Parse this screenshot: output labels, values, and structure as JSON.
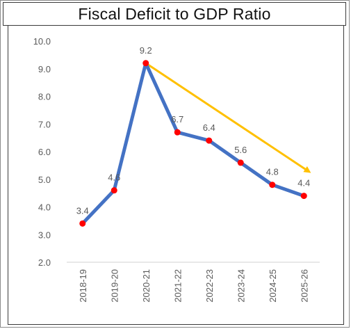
{
  "chart_data": {
    "type": "line",
    "title": "Fiscal Deficit to GDP Ratio",
    "categories": [
      "2018-19",
      "2019-20",
      "2020-21",
      "2021-22",
      "2022-23",
      "2023-24",
      "2024-25",
      "2025-26"
    ],
    "series": [
      {
        "values": [
          3.4,
          4.6,
          9.2,
          6.7,
          6.4,
          5.6,
          4.8,
          4.4
        ],
        "data_labels": [
          "3.4",
          "4.6",
          "9.2",
          "6.7",
          "6.4",
          "5.6",
          "4.8",
          "4.4"
        ],
        "line_color": "#4472C4",
        "marker_color": "#FF0000"
      }
    ],
    "y_ticks": [
      "2.0",
      "3.0",
      "4.0",
      "5.0",
      "6.0",
      "7.0",
      "8.0",
      "9.0",
      "10.0"
    ],
    "ylim": [
      2.0,
      10.0
    ],
    "grid": false,
    "legend": "none",
    "annotations": [
      {
        "type": "trend-arrow",
        "from": {
          "x": "2020-21",
          "y": 9.2
        },
        "to": {
          "x": "2025-26",
          "y": 5.3
        },
        "color": "#FFC000"
      }
    ]
  }
}
